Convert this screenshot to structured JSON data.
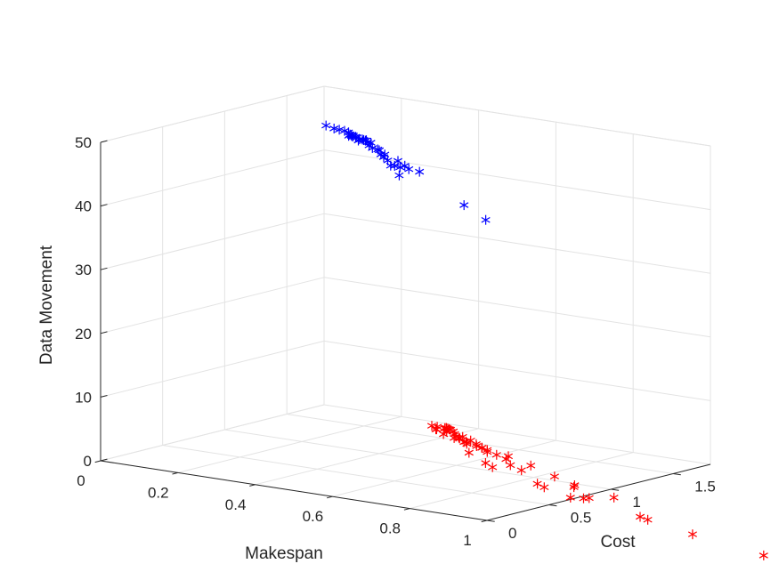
{
  "chart_data": {
    "type": "scatter3d",
    "xlabel": "Makespan",
    "ylabel": "Cost",
    "zlabel": "Data Movement",
    "xlim": [
      0,
      1
    ],
    "ylim": [
      0,
      1.8
    ],
    "zlim": [
      0,
      50
    ],
    "xticks": [
      "0",
      "0.2",
      "0.4",
      "0.6",
      "0.8",
      "1"
    ],
    "xtick_values": [
      0,
      0.2,
      0.4,
      0.6,
      0.8,
      1
    ],
    "yticks": [
      "0",
      "0.5",
      "1",
      "1.5"
    ],
    "ytick_values": [
      0,
      0.5,
      1,
      1.5
    ],
    "zticks": [
      "0",
      "10",
      "20",
      "30",
      "40",
      "50"
    ],
    "ztick_values": [
      0,
      10,
      20,
      30,
      40,
      50
    ],
    "grid": true,
    "marker": "asterisk",
    "series": [
      {
        "color": "#0000ff",
        "points": [
          [
            0.14,
            1.38,
            47.2
          ],
          [
            0.18,
            1.32,
            47.4
          ],
          [
            0.2,
            1.3,
            47.5
          ],
          [
            0.22,
            1.28,
            47.6
          ],
          [
            0.24,
            1.25,
            47.7
          ],
          [
            0.25,
            1.22,
            47.4
          ],
          [
            0.26,
            1.2,
            47.8
          ],
          [
            0.27,
            1.18,
            47.9
          ],
          [
            0.28,
            1.15,
            48.0
          ],
          [
            0.29,
            1.13,
            48.1
          ],
          [
            0.3,
            1.12,
            48.2
          ],
          [
            0.31,
            1.1,
            48.3
          ],
          [
            0.32,
            1.08,
            48.0
          ],
          [
            0.33,
            1.06,
            48.4
          ],
          [
            0.34,
            1.05,
            48.5
          ],
          [
            0.35,
            1.03,
            48.6
          ],
          [
            0.36,
            1.02,
            48.7
          ],
          [
            0.37,
            1.0,
            48.6
          ],
          [
            0.38,
            0.98,
            48.3
          ],
          [
            0.3,
            1.2,
            47.2
          ],
          [
            0.33,
            1.15,
            47.4
          ],
          [
            0.35,
            1.1,
            47.0
          ],
          [
            0.38,
            1.05,
            47.3
          ],
          [
            0.4,
            1.0,
            47.6
          ],
          [
            0.42,
            0.95,
            47.4
          ],
          [
            0.44,
            0.92,
            47.7
          ],
          [
            0.45,
            0.88,
            47.6
          ],
          [
            0.47,
            0.85,
            47.4
          ],
          [
            0.5,
            0.78,
            47.2
          ],
          [
            0.52,
            0.75,
            47.5
          ],
          [
            0.55,
            0.7,
            47.8
          ],
          [
            0.58,
            0.6,
            47.3
          ],
          [
            0.4,
            1.15,
            45.2
          ],
          [
            0.45,
            1.05,
            45.4
          ],
          [
            0.47,
            1.02,
            45.2
          ],
          [
            0.52,
            0.95,
            45.6
          ],
          [
            0.78,
            0.5,
            45.0
          ],
          [
            0.82,
            0.55,
            42.8
          ]
        ]
      },
      {
        "color": "#ff0000",
        "points": [
          [
            0.6,
            0.8,
            7.2
          ],
          [
            0.65,
            0.75,
            7.5
          ],
          [
            0.66,
            0.72,
            7.8
          ],
          [
            0.67,
            0.7,
            8.0
          ],
          [
            0.68,
            0.68,
            8.1
          ],
          [
            0.69,
            0.66,
            8.2
          ],
          [
            0.7,
            0.64,
            8.3
          ],
          [
            0.72,
            0.6,
            8.4
          ],
          [
            0.74,
            0.56,
            8.0
          ],
          [
            0.76,
            0.52,
            8.2
          ],
          [
            0.78,
            0.5,
            7.8
          ],
          [
            0.8,
            0.46,
            7.9
          ],
          [
            0.55,
            1.0,
            5.6
          ],
          [
            0.6,
            0.92,
            5.8
          ],
          [
            0.64,
            0.86,
            6.0
          ],
          [
            0.68,
            0.8,
            6.2
          ],
          [
            0.72,
            0.74,
            6.3
          ],
          [
            0.76,
            0.66,
            6.5
          ],
          [
            0.8,
            0.58,
            6.7
          ],
          [
            0.84,
            0.5,
            6.8
          ],
          [
            0.9,
            0.3,
            6.6
          ],
          [
            0.95,
            0.2,
            6.9
          ],
          [
            0.5,
            1.15,
            4.0
          ],
          [
            0.55,
            1.05,
            4.2
          ],
          [
            0.6,
            0.98,
            4.4
          ],
          [
            0.65,
            0.92,
            4.6
          ],
          [
            0.7,
            0.85,
            4.7
          ],
          [
            0.75,
            0.78,
            4.9
          ],
          [
            0.8,
            0.7,
            5.0
          ],
          [
            0.85,
            0.62,
            5.2
          ],
          [
            0.9,
            0.5,
            5.3
          ],
          [
            1.05,
            0.25,
            5.0
          ],
          [
            1.1,
            0.15,
            5.4
          ],
          [
            1.2,
            0.05,
            5.2
          ],
          [
            1.25,
            0.0,
            5.8
          ],
          [
            0.45,
            1.3,
            2.8
          ],
          [
            0.55,
            1.18,
            2.9
          ],
          [
            0.65,
            1.05,
            3.0
          ],
          [
            0.75,
            0.95,
            3.1
          ],
          [
            0.85,
            0.82,
            3.2
          ],
          [
            0.95,
            0.7,
            3.0
          ],
          [
            1.05,
            0.55,
            3.3
          ],
          [
            1.2,
            0.4,
            3.5
          ],
          [
            0.6,
            1.1,
            1.5
          ],
          [
            0.8,
            0.9,
            1.6
          ],
          [
            1.0,
            0.7,
            1.8
          ],
          [
            1.3,
            0.3,
            1.9
          ],
          [
            1.5,
            0.1,
            2.0
          ],
          [
            1.4,
            0.05,
            3.6
          ],
          [
            1.2,
            0.2,
            4.4
          ],
          [
            1.7,
            0.05,
            0.8
          ]
        ]
      }
    ]
  }
}
